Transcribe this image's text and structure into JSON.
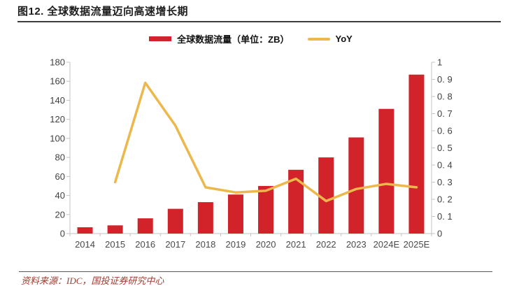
{
  "figure": {
    "title": "图12. 全球数据流量迈向高速增长期",
    "source": "资料来源：IDC，国投证券研究中心"
  },
  "legend": {
    "items": [
      {
        "label": "全球数据流量（单位：ZB）",
        "type": "bar",
        "color": "#d2232a"
      },
      {
        "label": "YoY",
        "type": "line",
        "color": "#edb84b"
      }
    ]
  },
  "chart_data": {
    "type": "bar",
    "subtype": "combo-bar-line-dual-axis",
    "title": "图12. 全球数据流量迈向高速增长期",
    "categories": [
      "2014",
      "2015",
      "2016",
      "2017",
      "2018",
      "2019",
      "2020",
      "2021",
      "2022",
      "2023",
      "2024E",
      "2025E"
    ],
    "series": [
      {
        "name": "全球数据流量（单位：ZB）",
        "type": "bar",
        "axis": "left",
        "color": "#d2232a",
        "values": [
          6.6,
          8.6,
          16,
          26,
          33,
          41,
          50,
          67,
          80,
          101,
          131,
          167
        ]
      },
      {
        "name": "YoY",
        "type": "line",
        "axis": "right",
        "color": "#edb84b",
        "values": [
          null,
          0.3,
          0.88,
          0.63,
          0.27,
          0.24,
          0.25,
          0.32,
          0.19,
          0.26,
          0.29,
          0.27
        ]
      }
    ],
    "left_axis": {
      "min": 0,
      "max": 180,
      "step": 20,
      "tick_labels": [
        "0",
        "20",
        "40",
        "60",
        "80",
        "100",
        "120",
        "140",
        "160",
        "180"
      ]
    },
    "right_axis": {
      "min": 0,
      "max": 1,
      "step": 0.1,
      "tick_labels": [
        "0",
        "0. 1",
        "0. 2",
        "0. 3",
        "0. 4",
        "0. 5",
        "0. 6",
        "0. 7",
        "0. 8",
        "0. 9",
        "1"
      ]
    },
    "grid": false,
    "legend_position": "top-center"
  },
  "colors": {
    "bar": "#d2232a",
    "line": "#edb84b",
    "axis_line": "#c3c3c3",
    "tick_text": "#3f3f3f",
    "title_text": "#1c1c1c",
    "source_text": "#a23b2f"
  }
}
